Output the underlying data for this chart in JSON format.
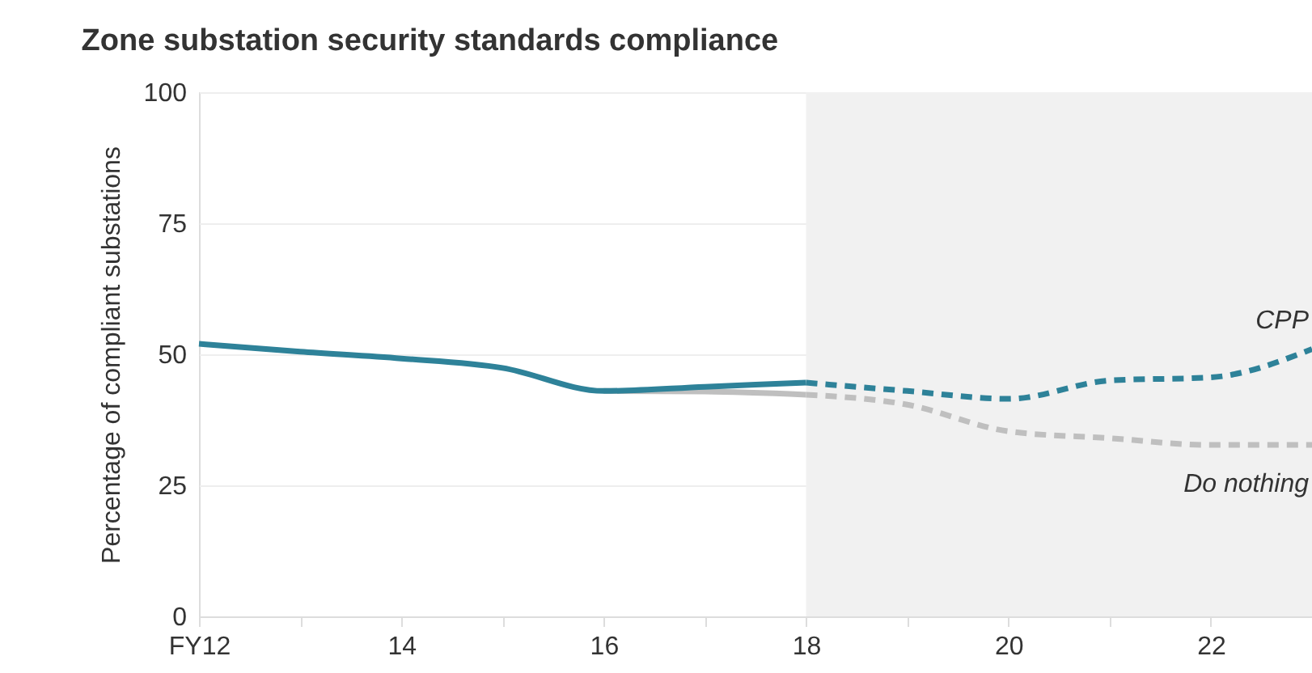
{
  "chart_data": {
    "type": "line",
    "title": "Zone substation security standards compliance",
    "ylabel": "Percentage of compliant substations",
    "series": [
      {
        "color": "#bfbfbf",
        "line_style": "solid",
        "x": [
          16,
          17,
          18
        ],
        "values": [
          43,
          42.9,
          42.3
        ]
      },
      {
        "color": "#2e8299",
        "line_style": "solid",
        "x": [
          12,
          13,
          14,
          15,
          16,
          17,
          18
        ],
        "values": [
          52,
          50.5,
          49.2,
          47.4,
          43,
          43.8,
          44.6
        ]
      },
      {
        "name": "Do nothing",
        "color": "#bfbfbf",
        "line_style": "dashed",
        "x": [
          18,
          19,
          20,
          21,
          22,
          23
        ],
        "values": [
          42.3,
          40.4,
          35.3,
          34,
          32.7,
          32.7
        ]
      },
      {
        "name": "CPP",
        "color": "#2e8299",
        "line_style": "dashed",
        "x": [
          18,
          19,
          20,
          21,
          22,
          23
        ],
        "values": [
          44.6,
          43,
          41.5,
          45,
          45.6,
          51
        ]
      }
    ],
    "bands": [
      {
        "axis": "x",
        "from": 18,
        "to": 23,
        "color": "#f1f1f1"
      }
    ],
    "xlim": [
      12,
      23
    ],
    "xticks": [
      {
        "value": 12,
        "label": "FY12"
      },
      {
        "value": 13,
        "label": null
      },
      14,
      {
        "value": 15,
        "label": null
      },
      16,
      {
        "value": 17,
        "label": null
      },
      18,
      {
        "value": 19,
        "label": null
      },
      20,
      {
        "value": 21,
        "label": null
      },
      22
    ],
    "ylim": [
      0,
      100
    ],
    "yticks": [
      0,
      25,
      50,
      75,
      100
    ],
    "grid": "y",
    "legend": false,
    "marker": "none"
  }
}
